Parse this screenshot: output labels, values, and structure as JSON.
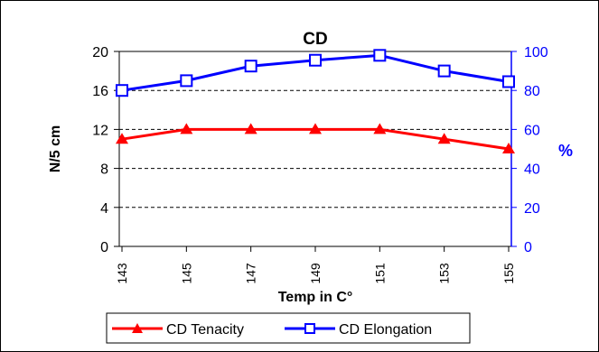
{
  "chart_data": {
    "type": "line",
    "title": "CD",
    "xlabel": "Temp in C°",
    "ylabel_left": "N/5 cm",
    "ylabel_right": "%",
    "categories": [
      "143",
      "145",
      "147",
      "149",
      "151",
      "153",
      "155"
    ],
    "left_ticks": [
      "0",
      "4",
      "8",
      "12",
      "16",
      "20"
    ],
    "right_ticks": [
      "0",
      "20",
      "40",
      "60",
      "80",
      "100"
    ],
    "ylim_left": [
      0,
      20
    ],
    "ylim_right": [
      0,
      100
    ],
    "grid": "dashed horizontal at y = 8, 12, 16",
    "legend_position": "bottom",
    "series": [
      {
        "name": "CD Tenacity",
        "axis": "left",
        "color": "#ff0000",
        "marker": "filled-triangle",
        "values": [
          11,
          12,
          12,
          12,
          12,
          11,
          10
        ]
      },
      {
        "name": "CD Elongation",
        "axis": "right",
        "color": "#0000ff",
        "marker": "hollow-square",
        "values": [
          80,
          85,
          92.5,
          95.5,
          98,
          90,
          84.5
        ]
      }
    ]
  }
}
